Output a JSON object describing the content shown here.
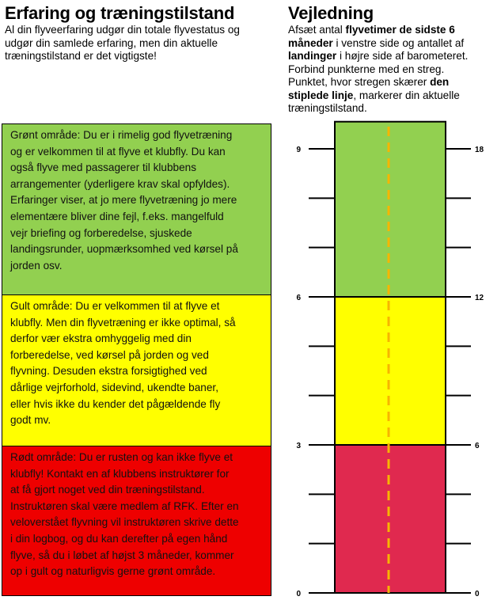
{
  "left": {
    "title": "Erfaring og træningstilstand",
    "intro_lines": [
      "Al din flyveerfaring udgør din totale flyvestatus og",
      "udgør din samlede erfaring, men din aktuelle",
      "træningstilstand er det vigtigste!"
    ],
    "zones": [
      {
        "name": "green",
        "color": "#92d050",
        "lines": [
          "Grønt område: Du er i rimelig god flyvetræning",
          "og er velkommen til at flyve et klubfly. Du kan",
          "også flyve med passagerer til klubbens",
          "arrangementer (yderligere krav skal opfyldes).",
          "Erfaringer viser, at jo mere flyvetræning jo mere",
          "elementære bliver dine fejl, f.eks. mangelfuld",
          "vejr briefing og forberedelse, sjuskede",
          "landingsrunder, uopmærksomhed ved kørsel på",
          "jorden osv."
        ]
      },
      {
        "name": "yellow",
        "color": "#ffff00",
        "lines": [
          "Gult område: Du er velkommen til at flyve et",
          "klubfly. Men din flyvetræning er ikke optimal, så",
          "derfor vær ekstra omhyggelig med din",
          "forberedelse, ved kørsel på jorden og ved",
          "flyvning. Desuden ekstra forsigtighed ved",
          "dårlige vejrforhold, sidevind, ukendte baner,",
          "eller hvis ikke du kender det pågældende fly",
          "godt mv."
        ]
      },
      {
        "name": "red",
        "color": "#ee0000",
        "lines": [
          "Rødt område: Du er rusten og kan ikke flyve et",
          "klubfly! Kontakt en af klubbens instruktører for",
          "at få gjort noget ved din træningstilstand.",
          "Instruktøren skal være medlem af RFK. Efter en",
          "veloverstået flyvning vil instruktøren skrive dette",
          "i din logbog, og du kan derefter på egen hånd",
          "flyve, så du i løbet af højst 3 måneder, kommer",
          "op i gult og naturligvis gerne grønt område."
        ]
      }
    ]
  },
  "right": {
    "title": "Vejledning",
    "intro": {
      "p1": "Afsæt antal ",
      "b1": "flyvetimer de sidste 6",
      "b1b": "måneder",
      "p2": " i venstre side og antallet af",
      "b2": "landinger",
      "p3": " i højre side af barometeret.",
      "p4": "Forbind punkterne med en streg.",
      "p5": "Punktet, hvor stregen skærer ",
      "b3": "den",
      "b3b": "stiplede linje",
      "p6": ", markerer din aktuelle",
      "p7": "træningstilstand."
    }
  },
  "barometer": {
    "left_scale": {
      "min": 0,
      "max": 9,
      "labels": [
        "0",
        "3",
        "6",
        "9"
      ],
      "label_values": [
        0,
        3,
        6,
        9
      ],
      "tick_step": 1
    },
    "right_scale": {
      "min": 0,
      "max": 18,
      "labels": [
        "0",
        "6",
        "12",
        "18"
      ],
      "label_values": [
        0,
        6,
        12,
        18
      ],
      "tick_step": 2
    },
    "bands": [
      {
        "name": "red",
        "from": 0,
        "to": 3,
        "color": "#e0294f"
      },
      {
        "name": "yellow",
        "from": 3,
        "to": 6,
        "color": "#ffff00"
      },
      {
        "name": "green",
        "from": 6,
        "to": 9.55,
        "color": "#92d050"
      }
    ],
    "dashed_line_color": "#f7b500"
  }
}
